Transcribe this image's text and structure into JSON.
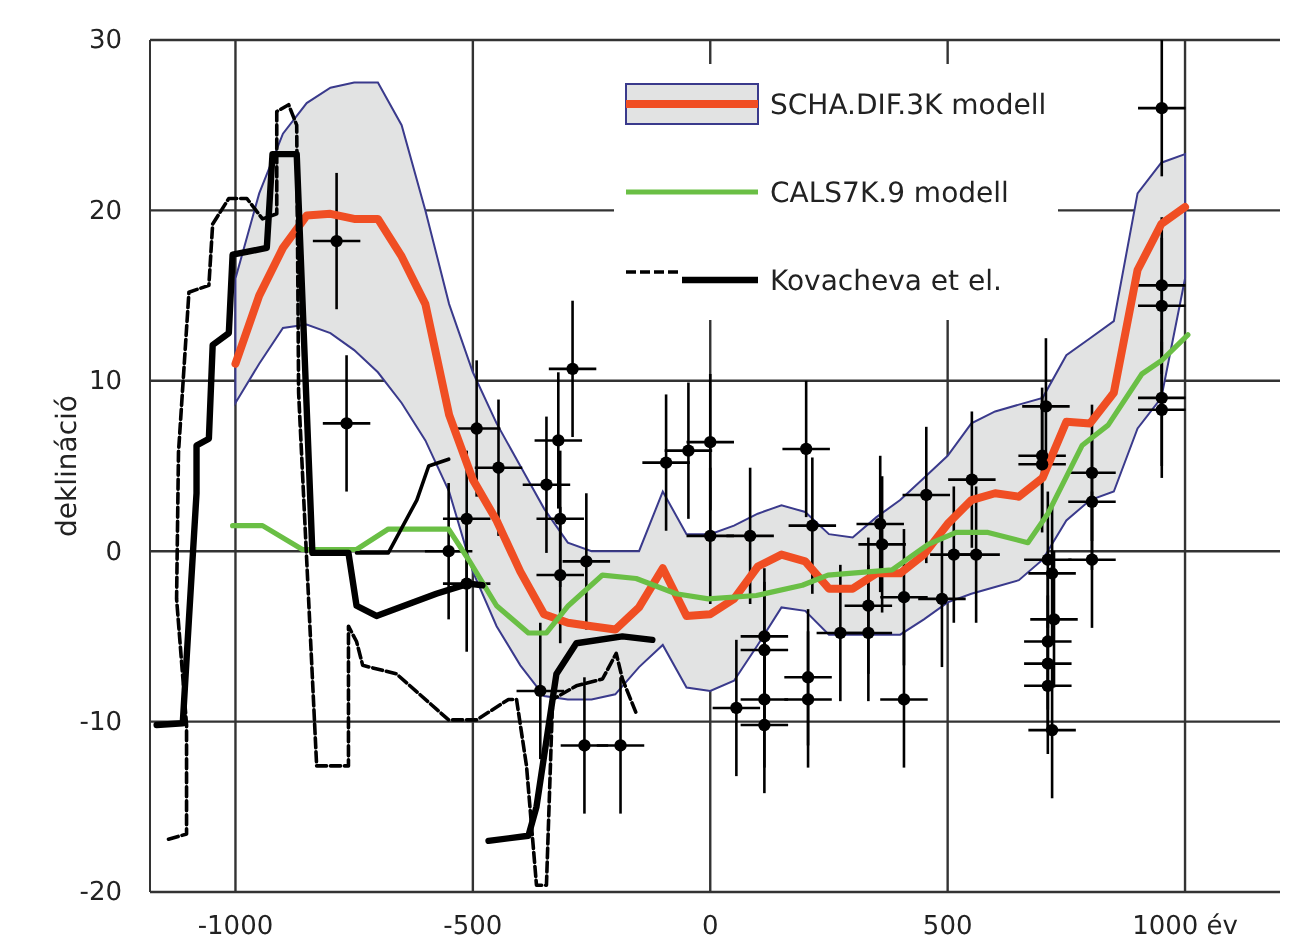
{
  "chart_data": {
    "type": "line",
    "ylabel": "deklináció",
    "xlim": [
      -1180,
      1200
    ],
    "ylim": [
      -20,
      30
    ],
    "xticks": [
      -1000,
      -500,
      0,
      500,
      {
        "value": 1000,
        "label": "1000 év"
      }
    ],
    "yticks": [
      -20,
      -10,
      0,
      10,
      20,
      30
    ],
    "grid": true,
    "legend": "top right",
    "series": [
      {
        "name": "SCHA.DIF.3K modell",
        "color": "#f04e23",
        "x": [
          -1000,
          -950,
          -900,
          -850,
          -800,
          -750,
          -700,
          -650,
          -600,
          -550,
          -500,
          -450,
          -400,
          -350,
          -300,
          -250,
          -200,
          -150,
          -100,
          -50,
          0,
          50,
          100,
          150,
          200,
          250,
          300,
          350,
          400,
          450,
          500,
          550,
          600,
          650,
          700,
          750,
          800,
          850,
          900,
          950,
          1000
        ],
        "values": [
          11,
          15,
          17.8,
          19.7,
          19.8,
          19.5,
          19.5,
          17.3,
          14.5,
          8,
          4.2,
          1.8,
          -1.2,
          -3.7,
          -4.2,
          -4.4,
          -4.6,
          -3.3,
          -1,
          -3.8,
          -3.7,
          -2.8,
          -0.9,
          -0.2,
          -0.6,
          -2.2,
          -2.2,
          -1.3,
          -1.3,
          -0.2,
          1.6,
          3,
          3.4,
          3.2,
          4.3,
          7.6,
          7.5,
          9.3,
          16.5,
          19.2,
          20.2
        ],
        "lower": [
          8.7,
          11,
          13.1,
          13.3,
          12.8,
          11.8,
          10.5,
          8.7,
          6.5,
          3.5,
          -1.2,
          -4.4,
          -6.7,
          -8.5,
          -8.7,
          -8.7,
          -8.4,
          -6.8,
          -5.5,
          -8,
          -8.2,
          -7.6,
          -5.5,
          -3.3,
          -3.5,
          -4.9,
          -4.9,
          -4.9,
          -4.9,
          -4,
          -3,
          -2.5,
          -2.1,
          -1.7,
          -0.5,
          1.8,
          3,
          3.5,
          7.2,
          9,
          16
        ],
        "upper": [
          16,
          21,
          24.5,
          26.3,
          27.2,
          27.5,
          27.5,
          25,
          20,
          14.5,
          10.5,
          7.5,
          5,
          2.5,
          0.5,
          0,
          0,
          0,
          3.5,
          1,
          1,
          1.5,
          2.2,
          2.7,
          2.3,
          1,
          0.8,
          2,
          3,
          4.3,
          5.6,
          7.5,
          8.2,
          8.6,
          9,
          11.5,
          12.5,
          13.5,
          21,
          22.8,
          23.3
        ]
      },
      {
        "name": "CALS7K.9 modell",
        "color": "#6abf45",
        "x": [
          -1006,
          -943,
          -859,
          -745,
          -678,
          -551,
          -509,
          -450,
          -383,
          -345,
          -299,
          -227,
          -156,
          -72,
          -4,
          97,
          194,
          248,
          383,
          459,
          518,
          585,
          669,
          711,
          783,
          838,
          909,
          951,
          1006
        ],
        "values": [
          1.5,
          1.5,
          0.1,
          0.1,
          1.3,
          1.3,
          -0.5,
          -3.2,
          -4.8,
          -4.8,
          -3.2,
          -1.4,
          -1.6,
          -2.5,
          -2.8,
          -2.6,
          -2,
          -1.4,
          -1.1,
          0.4,
          1.1,
          1.1,
          0.5,
          2.2,
          6.2,
          7.4,
          10.4,
          11.2,
          12.7
        ]
      },
      {
        "name": "Kovacheva et el.",
        "color": "#000000",
        "line_style": "solid",
        "x": [
          -1166,
          -1111,
          -1098,
          -1082,
          -1082,
          -1056,
          -1048,
          -1014,
          -1006,
          -934,
          -922,
          -871,
          -838,
          -762,
          -745,
          -703,
          -577,
          -509,
          -480,
          -470,
          -467,
          -383,
          -366,
          -324,
          -282,
          -185,
          -122
        ],
        "values": [
          -10.2,
          -10.1,
          -4,
          3.4,
          6.2,
          6.6,
          12.1,
          12.8,
          17.4,
          17.8,
          23.3,
          23.3,
          -0.1,
          -0.1,
          -3.2,
          -3.8,
          -2.5,
          -1.9,
          -2,
          null,
          -17,
          -16.7,
          -15,
          -7.2,
          -5.4,
          -5,
          -5.2
        ]
      },
      {
        "color": "#000000",
        "line_style": "dashed",
        "x": [
          -1141,
          -1103,
          -1103,
          -1124,
          -1120,
          -1098,
          -1056,
          -1048,
          -1014,
          -976,
          -943,
          -913,
          -913,
          -888,
          -871,
          -867,
          -829,
          -762,
          -762,
          -745,
          -732,
          -661,
          -551,
          -492,
          -425,
          -408,
          -387,
          -366,
          -345,
          -332,
          -282,
          -227,
          -198,
          -185,
          -156
        ],
        "values": [
          -16.9,
          -16.6,
          -10.2,
          -2.8,
          5.8,
          15.2,
          15.6,
          19.2,
          20.7,
          20.7,
          19.5,
          19.8,
          25.8,
          26.2,
          25,
          9.3,
          -12.6,
          -12.6,
          -4.4,
          -5.3,
          -6.7,
          -7.2,
          -9.9,
          -9.9,
          -8.7,
          -8.7,
          -12.6,
          -19.6,
          -19.6,
          -8.7,
          -7.9,
          -7.5,
          -6,
          -7.5,
          -9.5
        ]
      },
      {
        "color": "#000000",
        "line_style": "solid",
        "x": [
          -745,
          -678,
          -618,
          -593,
          -551
        ],
        "values": [
          -0.1,
          -0.1,
          3,
          5,
          5.4
        ]
      },
      {
        "type": "scatter",
        "color": "#000000",
        "marker": "circle",
        "x": [
          -787,
          -766,
          -492,
          -446,
          -513,
          -551,
          -513,
          -290,
          -320,
          -345,
          -316,
          -316,
          -261,
          -358,
          -265,
          -189,
          -93,
          -46,
          0,
          0,
          84,
          55,
          114,
          114,
          114,
          114,
          202,
          215,
          206,
          206,
          274,
          333,
          333,
          358,
          362,
          408,
          408,
          455,
          488,
          513,
          551,
          560,
          707,
          699,
          699,
          711,
          720,
          724,
          711,
          711,
          711,
          720,
          804,
          804,
          804,
          951,
          951,
          951,
          951,
          951
        ],
        "values": [
          18.2,
          7.5,
          7.2,
          4.9,
          1.9,
          0,
          -1.9,
          10.7,
          6.5,
          3.9,
          1.9,
          -1.4,
          -0.6,
          -8.2,
          -11.4,
          -11.4,
          5.2,
          5.9,
          6.4,
          0.9,
          0.9,
          -9.2,
          -5,
          -5.8,
          -8.7,
          -10.2,
          6,
          1.5,
          -7.4,
          -8.7,
          -4.8,
          -3.2,
          -4.8,
          1.6,
          0.4,
          -2.7,
          -8.7,
          3.3,
          -2.8,
          -0.2,
          4.2,
          -0.2,
          8.5,
          5.6,
          5.1,
          -0.5,
          -1.3,
          -4,
          -5.3,
          -6.6,
          -7.9,
          -10.5,
          4.6,
          2.9,
          -0.5,
          26,
          15.6,
          14.4,
          9,
          8.3
        ],
        "errors": [
          4,
          4,
          4,
          4,
          4,
          4,
          4,
          4,
          4,
          4,
          4,
          4,
          4,
          4,
          4,
          4,
          4,
          4,
          4,
          4,
          4,
          4,
          4,
          4,
          4,
          4,
          4,
          4,
          4,
          4,
          4,
          4,
          4,
          4,
          4,
          4,
          4,
          4,
          4,
          4,
          4,
          4,
          4,
          4,
          4,
          4,
          4,
          4,
          4,
          4,
          4,
          4,
          4,
          4,
          4,
          4,
          4,
          4,
          4,
          4
        ],
        "xerrors": [
          50,
          50,
          50,
          50,
          50,
          50,
          50,
          50,
          50,
          50,
          50,
          50,
          50,
          50,
          50,
          50,
          50,
          50,
          50,
          50,
          50,
          50,
          50,
          50,
          50,
          50,
          50,
          50,
          50,
          50,
          50,
          50,
          50,
          50,
          50,
          50,
          50,
          50,
          50,
          50,
          50,
          50,
          50,
          50,
          50,
          50,
          50,
          50,
          50,
          50,
          50,
          50,
          50,
          50,
          50,
          50,
          50,
          50,
          50,
          50
        ]
      }
    ]
  }
}
